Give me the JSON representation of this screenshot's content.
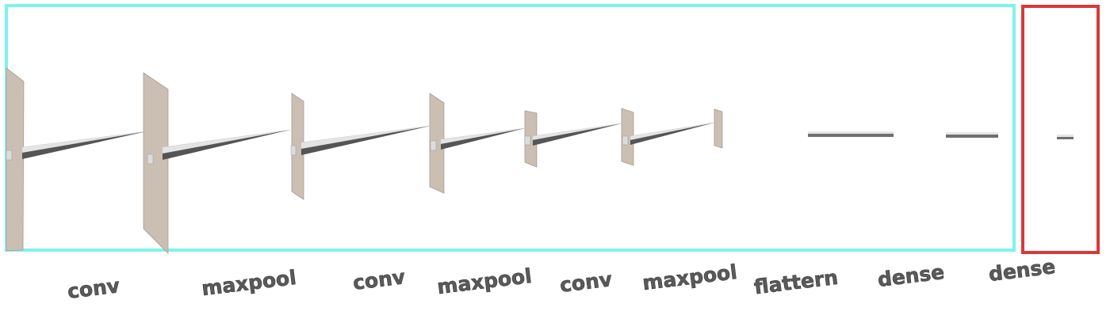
{
  "diagram": {
    "layers": [
      {
        "id": "conv-1",
        "label": "conv"
      },
      {
        "id": "maxpool-1",
        "label": "maxpool"
      },
      {
        "id": "conv-2",
        "label": "conv"
      },
      {
        "id": "maxpool-2",
        "label": "maxpool"
      },
      {
        "id": "conv-3",
        "label": "conv"
      },
      {
        "id": "maxpool-3",
        "label": "maxpool"
      },
      {
        "id": "flatten",
        "label": "flattern"
      },
      {
        "id": "dense-1",
        "label": "dense"
      },
      {
        "id": "dense-2",
        "label": "dense"
      }
    ],
    "groups": [
      {
        "id": "feature-extraction",
        "border_color": "#7ff3ee",
        "layers": [
          "conv-1",
          "maxpool-1",
          "conv-2",
          "maxpool-2",
          "conv-3",
          "maxpool-3",
          "flatten",
          "dense-1"
        ]
      },
      {
        "id": "output",
        "border_color": "#d63a3a",
        "layers": [
          "dense-2"
        ]
      }
    ],
    "colors": {
      "plate": "#cbbfb3",
      "plate_edge": "#a89c90",
      "kernel": "#e4e4e4",
      "kernel_shadow": "#555555",
      "dense_bar": "#6f6f6f",
      "label": "#5a5a5a"
    }
  }
}
